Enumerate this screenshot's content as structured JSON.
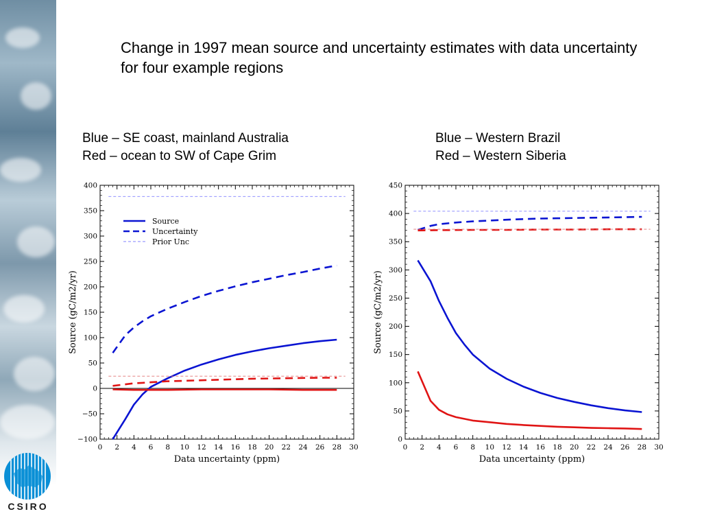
{
  "title": "Change in 1997 mean source and uncertainty estimates with data uncertainty for four example regions",
  "logo": {
    "text": "CSIRO",
    "icon": "csiro-logo-icon",
    "color": "#0a8fd6"
  },
  "captions": {
    "left": {
      "line1": "Blue – SE coast, mainland Australia",
      "line2": "Red – ocean to SW of Cape Grim"
    },
    "right": {
      "line1": "Blue – Western Brazil",
      "line2": "Red – Western Siberia"
    }
  },
  "colors": {
    "blue": "#0a14d2",
    "red": "#e01414",
    "prior": "#8080ff",
    "prior_red": "#e07070"
  },
  "chart_data": [
    {
      "type": "line",
      "xlabel": "Data uncertainty (ppm)",
      "ylabel": "Source (gC/m2/yr)",
      "xlim": [
        0,
        30
      ],
      "ylim": [
        -100,
        400
      ],
      "xticks": [
        0,
        2,
        4,
        6,
        8,
        10,
        12,
        14,
        16,
        18,
        20,
        22,
        24,
        26,
        28,
        30
      ],
      "yticks": [
        -100,
        -50,
        0,
        50,
        100,
        150,
        200,
        250,
        300,
        350,
        400
      ],
      "zero_line": true,
      "legend": {
        "position": "top-left",
        "entries": [
          "Source",
          "Uncertainty",
          "Prior Unc"
        ]
      },
      "series": [
        {
          "name": "Source",
          "region": "blue",
          "style": "solid",
          "color": "#0a14d2",
          "x": [
            1.5,
            3,
            4,
            5,
            6,
            8,
            10,
            12,
            14,
            16,
            18,
            20,
            22,
            24,
            26,
            28
          ],
          "y": [
            -100,
            -60,
            -32,
            -12,
            3,
            20,
            35,
            47,
            57,
            66,
            73,
            79,
            84,
            89,
            93,
            96
          ]
        },
        {
          "name": "Uncertainty",
          "region": "blue",
          "style": "dashed",
          "color": "#0a14d2",
          "x": [
            1.5,
            3,
            4,
            5,
            6,
            8,
            10,
            12,
            14,
            16,
            18,
            20,
            22,
            24,
            26,
            28
          ],
          "y": [
            70,
            105,
            120,
            132,
            142,
            157,
            170,
            182,
            192,
            201,
            209,
            216,
            223,
            229,
            236,
            242
          ]
        },
        {
          "name": "Prior Unc",
          "region": "blue",
          "style": "thin-dashed",
          "color": "#8080ff",
          "x": [
            1,
            29
          ],
          "y": [
            378,
            378
          ]
        },
        {
          "name": "Source",
          "region": "red",
          "style": "solid",
          "color": "#e01414",
          "x": [
            1.5,
            4,
            8,
            12,
            16,
            20,
            24,
            28
          ],
          "y": [
            -2,
            -3,
            -3,
            -2,
            -2,
            -2,
            -3,
            -3
          ]
        },
        {
          "name": "Uncertainty",
          "region": "red",
          "style": "dashed",
          "color": "#e01414",
          "x": [
            1.5,
            3,
            4,
            5,
            6,
            8,
            10,
            12,
            14,
            16,
            18,
            20,
            22,
            24,
            26,
            28
          ],
          "y": [
            5,
            8,
            10,
            11,
            12,
            14,
            15,
            16,
            17,
            18,
            19,
            19.5,
            20,
            20.5,
            21,
            21
          ]
        },
        {
          "name": "Prior Unc",
          "region": "red",
          "style": "thin-dashed",
          "color": "#e07070",
          "x": [
            1,
            29
          ],
          "y": [
            24,
            24
          ]
        }
      ]
    },
    {
      "type": "line",
      "xlabel": "Data uncertainty (ppm)",
      "ylabel": "Source (gC/m2/yr)",
      "xlim": [
        0,
        30
      ],
      "ylim": [
        0,
        450
      ],
      "xticks": [
        0,
        2,
        4,
        6,
        8,
        10,
        12,
        14,
        16,
        18,
        20,
        22,
        24,
        26,
        28,
        30
      ],
      "yticks": [
        0,
        50,
        100,
        150,
        200,
        250,
        300,
        350,
        400,
        450
      ],
      "zero_line": false,
      "series": [
        {
          "name": "Source",
          "region": "blue",
          "style": "solid",
          "color": "#0a14d2",
          "x": [
            1.5,
            3,
            4,
            5,
            6,
            7,
            8,
            10,
            12,
            14,
            16,
            18,
            20,
            22,
            24,
            26,
            28
          ],
          "y": [
            317,
            280,
            245,
            215,
            188,
            168,
            150,
            125,
            107,
            93,
            82,
            73,
            66,
            60,
            55,
            51,
            48
          ]
        },
        {
          "name": "Uncertainty",
          "region": "blue",
          "style": "dashed",
          "color": "#0a14d2",
          "x": [
            1.5,
            3,
            4,
            6,
            8,
            10,
            12,
            14,
            16,
            18,
            20,
            22,
            24,
            26,
            28
          ],
          "y": [
            371,
            378,
            381,
            384,
            386,
            387.5,
            389,
            390,
            391,
            391.5,
            392,
            392.5,
            393,
            393.5,
            394
          ]
        },
        {
          "name": "Prior Unc",
          "region": "blue",
          "style": "thin-dashed",
          "color": "#8080ff",
          "x": [
            1,
            29
          ],
          "y": [
            404,
            404
          ]
        },
        {
          "name": "Source",
          "region": "red",
          "style": "solid",
          "color": "#e01414",
          "x": [
            1.5,
            3,
            4,
            5,
            6,
            8,
            10,
            12,
            14,
            16,
            18,
            20,
            22,
            24,
            26,
            28
          ],
          "y": [
            120,
            68,
            52,
            44,
            39,
            33,
            30,
            27,
            25,
            23.5,
            22,
            21,
            20,
            19.5,
            19,
            18
          ]
        },
        {
          "name": "Uncertainty",
          "region": "red",
          "style": "dashed",
          "color": "#e01414",
          "x": [
            1.5,
            4,
            8,
            12,
            16,
            20,
            24,
            28
          ],
          "y": [
            370,
            370.5,
            371,
            371,
            371.5,
            371.5,
            372,
            372
          ]
        },
        {
          "name": "Prior Unc",
          "region": "red",
          "style": "thin-dashed",
          "color": "#e07070",
          "x": [
            1,
            29
          ],
          "y": [
            372,
            372
          ]
        }
      ]
    }
  ]
}
